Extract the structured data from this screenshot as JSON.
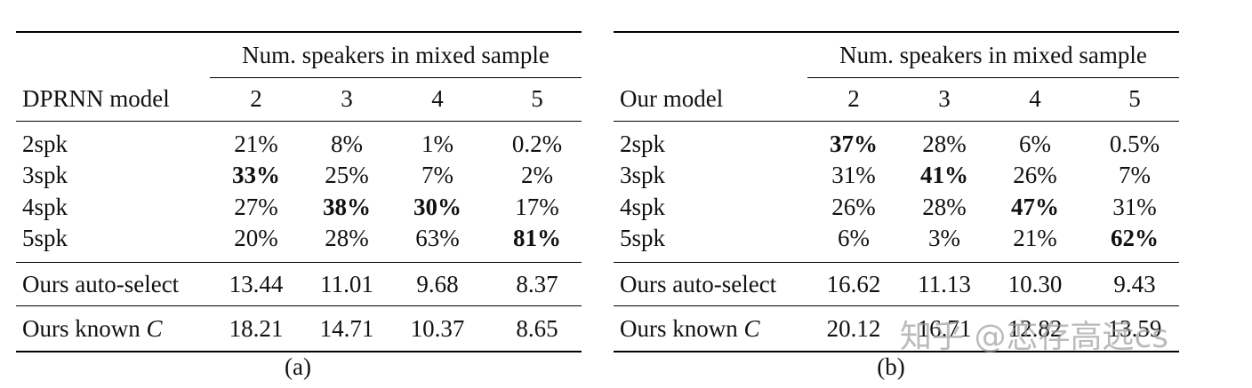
{
  "panels": [
    {
      "header_group": "Num. speakers in mixed sample",
      "model_label": "DPRNN model",
      "columns": [
        "2",
        "3",
        "4",
        "5"
      ],
      "rows": [
        {
          "label": "2spk",
          "cells": [
            "21%",
            "8%",
            "1%",
            "0.2%"
          ],
          "bold": [
            false,
            false,
            false,
            false
          ]
        },
        {
          "label": "3spk",
          "cells": [
            "33%",
            "25%",
            "7%",
            "2%"
          ],
          "bold": [
            true,
            false,
            false,
            false
          ]
        },
        {
          "label": "4spk",
          "cells": [
            "27%",
            "38%",
            "30%",
            "17%"
          ],
          "bold": [
            false,
            true,
            true,
            false
          ]
        },
        {
          "label": "5spk",
          "cells": [
            "20%",
            "28%",
            "63%",
            "81%"
          ],
          "bold": [
            false,
            false,
            false,
            true
          ]
        }
      ],
      "auto_select": {
        "label": "Ours auto-select",
        "cells": [
          "13.44",
          "11.01",
          "9.68",
          "8.37"
        ]
      },
      "known": {
        "label": "Ours known",
        "var": "C",
        "cells": [
          "18.21",
          "14.71",
          "10.37",
          "8.65"
        ]
      },
      "caption": "(a)"
    },
    {
      "header_group": "Num. speakers in mixed sample",
      "model_label": "Our model",
      "columns": [
        "2",
        "3",
        "4",
        "5"
      ],
      "rows": [
        {
          "label": "2spk",
          "cells": [
            "37%",
            "28%",
            "6%",
            "0.5%"
          ],
          "bold": [
            true,
            false,
            false,
            false
          ]
        },
        {
          "label": "3spk",
          "cells": [
            "31%",
            "41%",
            "26%",
            "7%"
          ],
          "bold": [
            false,
            true,
            false,
            false
          ]
        },
        {
          "label": "4spk",
          "cells": [
            "26%",
            "28%",
            "47%",
            "31%"
          ],
          "bold": [
            false,
            false,
            true,
            false
          ]
        },
        {
          "label": "5spk",
          "cells": [
            "6%",
            "3%",
            "21%",
            "62%"
          ],
          "bold": [
            false,
            false,
            false,
            true
          ]
        }
      ],
      "auto_select": {
        "label": "Ours auto-select",
        "cells": [
          "16.62",
          "11.13",
          "10.30",
          "9.43"
        ]
      },
      "known": {
        "label": "Ours known",
        "var": "C",
        "cells": [
          "20.12",
          "16.71",
          "12.82",
          "13.59"
        ]
      },
      "caption": "(b)"
    }
  ],
  "watermark": "知乎 @恋存高远cs"
}
